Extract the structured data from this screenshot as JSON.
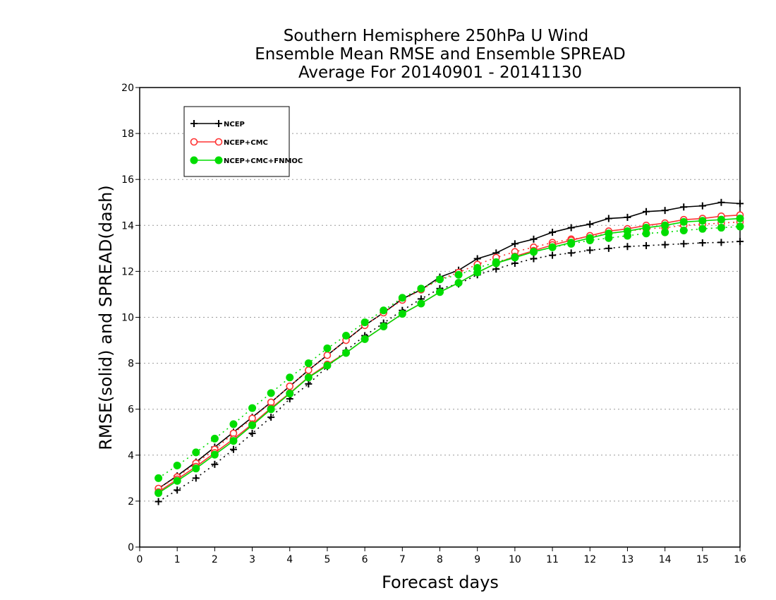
{
  "chart_data": {
    "type": "line",
    "title_lines": [
      "Southern Hemisphere 250hPa U Wind",
      "Ensemble Mean RMSE and Ensemble SPREAD",
      "Average For 20140901 - 20141130"
    ],
    "xlabel": "Forecast days",
    "ylabel": "RMSE(solid) and SPREAD(dash)",
    "xlim": [
      0,
      16
    ],
    "ylim": [
      0,
      20
    ],
    "xticks": [
      0,
      1,
      2,
      3,
      4,
      5,
      6,
      7,
      8,
      9,
      10,
      11,
      12,
      13,
      14,
      15,
      16
    ],
    "yticks": [
      0,
      2,
      4,
      6,
      8,
      10,
      12,
      14,
      16,
      18,
      20
    ],
    "grid": true,
    "legend_position": "top-left",
    "x": [
      0.5,
      1,
      1.5,
      2,
      2.5,
      3,
      3.5,
      4,
      4.5,
      5,
      5.5,
      6,
      6.5,
      7,
      7.5,
      8,
      8.5,
      9,
      9.5,
      10,
      10.5,
      11,
      11.5,
      12,
      12.5,
      13,
      13.5,
      14,
      14.5,
      15,
      15.5,
      16
    ],
    "series": [
      {
        "name": "NCEP",
        "color": "#000000",
        "marker": "plus",
        "rmse": [
          2.55,
          3.1,
          3.7,
          4.35,
          5.0,
          5.65,
          6.3,
          7.0,
          7.7,
          8.35,
          9.0,
          9.65,
          10.2,
          10.8,
          11.2,
          11.75,
          12.05,
          12.55,
          12.8,
          13.2,
          13.4,
          13.7,
          13.9,
          14.05,
          14.3,
          14.35,
          14.6,
          14.65,
          14.8,
          14.85,
          15.0,
          14.95
        ],
        "spread": [
          1.98,
          2.48,
          3.0,
          3.6,
          4.25,
          4.95,
          5.65,
          6.45,
          7.1,
          7.85,
          8.55,
          9.2,
          9.75,
          10.3,
          10.8,
          11.25,
          11.45,
          11.85,
          12.1,
          12.35,
          12.55,
          12.7,
          12.8,
          12.92,
          13.0,
          13.08,
          13.12,
          13.16,
          13.2,
          13.24,
          13.26,
          13.3
        ]
      },
      {
        "name": "NCEP+CMC",
        "color": "#ff3333",
        "marker": "open-circle",
        "rmse": [
          2.4,
          2.95,
          3.5,
          4.1,
          4.7,
          5.35,
          6.05,
          6.7,
          7.4,
          7.95,
          8.45,
          9.05,
          9.6,
          10.15,
          10.6,
          11.1,
          11.5,
          11.95,
          12.35,
          12.65,
          12.9,
          13.15,
          13.35,
          13.55,
          13.75,
          13.85,
          14.0,
          14.1,
          14.25,
          14.3,
          14.4,
          14.45
        ],
        "spread": [
          2.55,
          3.05,
          3.65,
          4.25,
          4.95,
          5.6,
          6.3,
          7.0,
          7.7,
          8.35,
          9.0,
          9.65,
          10.2,
          10.75,
          11.2,
          11.65,
          11.95,
          12.3,
          12.6,
          12.85,
          13.05,
          13.25,
          13.4,
          13.5,
          13.65,
          13.75,
          13.85,
          13.9,
          14.0,
          14.05,
          14.1,
          14.15
        ]
      },
      {
        "name": "NCEP+CMC+FNMOC",
        "color": "#00dd00",
        "marker": "filled-circle",
        "rmse": [
          2.35,
          2.88,
          3.42,
          4.02,
          4.62,
          5.3,
          6.0,
          6.68,
          7.38,
          7.9,
          8.45,
          9.05,
          9.6,
          10.15,
          10.6,
          11.1,
          11.5,
          11.95,
          12.35,
          12.6,
          12.85,
          13.05,
          13.25,
          13.45,
          13.65,
          13.75,
          13.9,
          14.0,
          14.15,
          14.2,
          14.25,
          14.3
        ],
        "spread": [
          3.0,
          3.55,
          4.12,
          4.72,
          5.35,
          6.05,
          6.7,
          7.38,
          8.0,
          8.65,
          9.2,
          9.78,
          10.3,
          10.85,
          11.25,
          11.65,
          11.85,
          12.15,
          12.4,
          12.62,
          12.85,
          13.05,
          13.2,
          13.35,
          13.45,
          13.55,
          13.65,
          13.7,
          13.78,
          13.85,
          13.9,
          13.95
        ]
      }
    ]
  }
}
